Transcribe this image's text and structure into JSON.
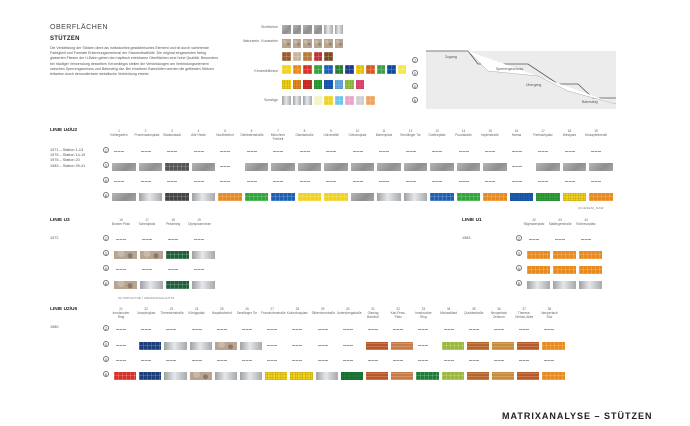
{
  "section_title": "OBERFLÄCHEN",
  "sub_title": "STÜTZEN",
  "description": "Die Verkleidung der Stützen dient als individuelles gestalterisches Element und ist durch variierende Farbigkeit und Formate Erkennungsmerkmal der Standorthalthöfe. Die original eingesetzten farbig glasierten Fliesen der U-Bahn geben den haptisch erlebbaren Oberflächen eine hohe Qualität. Besonders bei häufiger Verwendung desselben Keramiktyps stellen die Verkleidungen am Verbindungselement zwischen Sperrengeschoss und Bahnsteig dar. Bei einzelnen Bahnhöfen werden die gefliesten Stützen teilweise durch demontierbare metallische Verkleidung ersetzt.",
  "legend": {
    "groups": [
      {
        "label": "Sichtbeton"
      },
      {
        "label": "Naturstein, Kunststein"
      },
      {
        "label": "Keramikfliesen"
      },
      {
        "label": "Sonstige"
      }
    ]
  },
  "diagram": {
    "labels": [
      "Zugang",
      "Sperrengeschoss",
      "Übergang",
      "Bahnsteig"
    ],
    "markers": [
      "Z",
      "S",
      "Ü",
      "B"
    ]
  },
  "row_markers": [
    "Z",
    "S",
    "Ü",
    "B"
  ],
  "line_u4u2": {
    "title": "LINIE U4/U2",
    "years": [
      "1971 – Station 1-13",
      "1975 – Station 14-19",
      "1976 – Station 20",
      "1983 – Station 39-41"
    ],
    "stations": [
      {
        "num": "1",
        "name": "Kellergarten"
      },
      {
        "num": "2",
        "name": "Promenadenplatz"
      },
      {
        "num": "3",
        "name": "Stadionstadt"
      },
      {
        "num": "4",
        "name": "Alte Heide"
      },
      {
        "num": "5",
        "name": "Nordfriedhof"
      },
      {
        "num": "6",
        "name": "Dietlindenstraße"
      },
      {
        "num": "7",
        "name": "Münchner Freiheit"
      },
      {
        "num": "8",
        "name": "Giselastraße"
      },
      {
        "num": "9",
        "name": "Universität"
      },
      {
        "num": "10",
        "name": "Odeonsplatz"
      },
      {
        "num": "11",
        "name": "Marienplatz"
      },
      {
        "num": "12",
        "name": "Sendlinger Tor"
      },
      {
        "num": "13",
        "name": "Goetheplatz"
      },
      {
        "num": "14",
        "name": "Poccistraße"
      },
      {
        "num": "15",
        "name": "Implerstraße"
      },
      {
        "num": "16",
        "name": "Harras"
      },
      {
        "num": "17",
        "name": "Partnachplatz"
      },
      {
        "num": "18",
        "name": "Westpark"
      },
      {
        "num": "19",
        "name": "Holzapfelkreuth"
      }
    ],
    "note": "(FLIESEN)_RAW"
  },
  "line_u3": {
    "title": "LINIE U3",
    "year": "1972",
    "stations": [
      {
        "num": "16",
        "name": "Bonner Platz"
      },
      {
        "num": "17",
        "name": "Scheidplatz"
      },
      {
        "num": "18",
        "name": "Petuelring"
      },
      {
        "num": "19",
        "name": "Olympiazentrum"
      }
    ],
    "note": "OLYMPIALINIE / ZIEMAN&SCHLÖTZ"
  },
  "line_u1": {
    "title": "LINIE U1",
    "year": "1983",
    "stations": [
      {
        "num": "42",
        "name": "Stiglmaierplatz"
      },
      {
        "num": "43",
        "name": "Maillingerstraße"
      },
      {
        "num": "44",
        "name": "Rotkreuzplatz"
      }
    ]
  },
  "line_u2u5": {
    "title": "LINIE U2/U5",
    "year": "1980",
    "stations": [
      {
        "num": "21",
        "name": "Innsbrucker Ring"
      },
      {
        "num": "22",
        "name": "Josephsplatz"
      },
      {
        "num": "23",
        "name": "Theresienstraße"
      },
      {
        "num": "24",
        "name": "Königsplatz"
      },
      {
        "num": "25",
        "name": "Hauptbahnhof"
      },
      {
        "num": "26",
        "name": "Sendlinger Tor"
      },
      {
        "num": "27",
        "name": "Fraunhoferstraße"
      },
      {
        "num": "28",
        "name": "Kolumbusplatz"
      },
      {
        "num": "29",
        "name": "Silberhornstraße"
      },
      {
        "num": "30",
        "name": "Untersbergstraße"
      },
      {
        "num": "31",
        "name": "Giesing Bahnhof"
      },
      {
        "num": "32",
        "name": "Karl-Preis-Platz"
      },
      {
        "num": "33",
        "name": "Innsbrucker Ring"
      },
      {
        "num": "34",
        "name": "Michaelibad"
      },
      {
        "num": "35",
        "name": "Quiddestraße"
      },
      {
        "num": "36",
        "name": "Neuperlach Zentrum"
      },
      {
        "num": "37",
        "name": "Therese-Giehse-Allee"
      },
      {
        "num": "38",
        "name": "Neuperlach Süd"
      }
    ]
  },
  "footer_title": "MATRIXANALYSE – STÜTZEN",
  "colors": {
    "concrete": "#a9a9a9",
    "yellow": "#f2d31a",
    "orange": "#e98a1e",
    "green": "#2fa53a",
    "blue": "#1d5fb5",
    "red": "#d4322b",
    "brown": "#9b5a2e",
    "steel": "#c9cbcd"
  }
}
